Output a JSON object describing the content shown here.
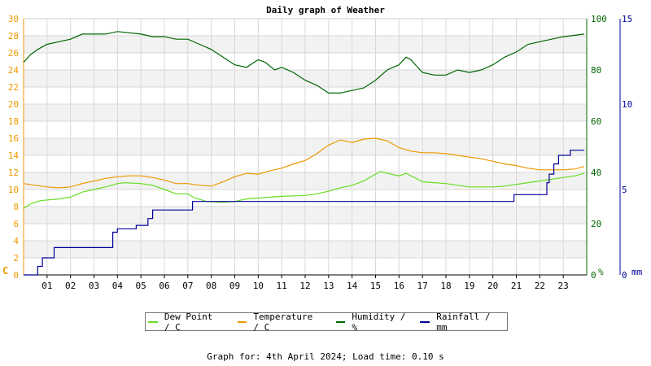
{
  "chart_data": {
    "type": "line",
    "title": "Daily graph of Weather",
    "footer": "Graph for: 4th April 2024; Load time: 0.10 s",
    "x_ticks": [
      "01",
      "02",
      "03",
      "04",
      "05",
      "06",
      "07",
      "08",
      "09",
      "10",
      "11",
      "12",
      "13",
      "14",
      "15",
      "16",
      "17",
      "18",
      "19",
      "20",
      "21",
      "22",
      "23"
    ],
    "xlim": [
      0,
      24
    ],
    "grid": true,
    "legend_placement": "bottom",
    "colors": {
      "dew_point": "#66dd22",
      "temperature": "#ee9900",
      "humidity": "#006600",
      "rainfall": "#000099",
      "left_axis": "#ee9900",
      "grid_band": "#f2f2f2",
      "grid_line": "#d8d8d8"
    },
    "axes": {
      "left": {
        "unit": "C",
        "ylim": [
          0,
          30
        ],
        "ticks": [
          "0",
          "2",
          "4",
          "6",
          "8",
          "10",
          "12",
          "14",
          "16",
          "18",
          "20",
          "22",
          "24",
          "26",
          "28",
          "30"
        ]
      },
      "humidity": {
        "unit": "%",
        "ylim": [
          0,
          100
        ],
        "ticks": [
          "0",
          "20",
          "40",
          "60",
          "80",
          "100"
        ]
      },
      "rainfall": {
        "unit": "mm",
        "ylim": [
          0,
          15
        ],
        "ticks": [
          "0",
          "5",
          "10",
          "15"
        ]
      }
    },
    "series": [
      {
        "key": "dew_point",
        "name": "Dew Point / C",
        "axis": "left",
        "points": [
          [
            0,
            7.8
          ],
          [
            0.3,
            8.3
          ],
          [
            0.7,
            8.7
          ],
          [
            1.5,
            8.9
          ],
          [
            2,
            9.1
          ],
          [
            2.5,
            9.7
          ],
          [
            3,
            10.0
          ],
          [
            3.5,
            10.3
          ],
          [
            4,
            10.7
          ],
          [
            4.3,
            10.8
          ],
          [
            5,
            10.7
          ],
          [
            5.5,
            10.5
          ],
          [
            6,
            10.0
          ],
          [
            6.5,
            9.5
          ],
          [
            7,
            9.5
          ],
          [
            7.3,
            9.0
          ],
          [
            7.8,
            8.6
          ],
          [
            8.5,
            8.5
          ],
          [
            9,
            8.6
          ],
          [
            9.5,
            8.9
          ],
          [
            10,
            9.0
          ],
          [
            10.5,
            9.1
          ],
          [
            11,
            9.2
          ],
          [
            12,
            9.3
          ],
          [
            12.5,
            9.5
          ],
          [
            13,
            9.8
          ],
          [
            13.5,
            10.2
          ],
          [
            14,
            10.5
          ],
          [
            14.5,
            11.0
          ],
          [
            15,
            11.8
          ],
          [
            15.2,
            12.1
          ],
          [
            15.5,
            11.9
          ],
          [
            16,
            11.6
          ],
          [
            16.3,
            11.9
          ],
          [
            16.8,
            11.2
          ],
          [
            17,
            10.9
          ],
          [
            17.5,
            10.8
          ],
          [
            18,
            10.7
          ],
          [
            18.5,
            10.5
          ],
          [
            19,
            10.3
          ],
          [
            19.5,
            10.3
          ],
          [
            20,
            10.3
          ],
          [
            20.5,
            10.4
          ],
          [
            21,
            10.6
          ],
          [
            21.5,
            10.8
          ],
          [
            22,
            11.0
          ],
          [
            22.5,
            11.2
          ],
          [
            23,
            11.4
          ],
          [
            23.5,
            11.6
          ],
          [
            23.9,
            11.9
          ]
        ]
      },
      {
        "key": "temperature",
        "name": "Temperature / C",
        "axis": "left",
        "points": [
          [
            0,
            10.7
          ],
          [
            0.5,
            10.5
          ],
          [
            1,
            10.3
          ],
          [
            1.5,
            10.2
          ],
          [
            2,
            10.3
          ],
          [
            2.5,
            10.7
          ],
          [
            3,
            11.0
          ],
          [
            3.5,
            11.3
          ],
          [
            4,
            11.5
          ],
          [
            4.5,
            11.6
          ],
          [
            5,
            11.6
          ],
          [
            5.5,
            11.4
          ],
          [
            6,
            11.1
          ],
          [
            6.5,
            10.7
          ],
          [
            7,
            10.7
          ],
          [
            7.5,
            10.5
          ],
          [
            8,
            10.4
          ],
          [
            8.5,
            10.9
          ],
          [
            9,
            11.5
          ],
          [
            9.5,
            11.9
          ],
          [
            10,
            11.8
          ],
          [
            10.5,
            12.2
          ],
          [
            11,
            12.5
          ],
          [
            11.5,
            13.0
          ],
          [
            12,
            13.4
          ],
          [
            12.5,
            14.2
          ],
          [
            13,
            15.2
          ],
          [
            13.5,
            15.8
          ],
          [
            14,
            15.5
          ],
          [
            14.5,
            15.9
          ],
          [
            15,
            16.0
          ],
          [
            15.5,
            15.7
          ],
          [
            16,
            14.9
          ],
          [
            16.5,
            14.5
          ],
          [
            17,
            14.3
          ],
          [
            17.5,
            14.3
          ],
          [
            18,
            14.2
          ],
          [
            18.5,
            14.0
          ],
          [
            19,
            13.8
          ],
          [
            19.5,
            13.6
          ],
          [
            20,
            13.3
          ],
          [
            20.5,
            13.0
          ],
          [
            21,
            12.8
          ],
          [
            21.5,
            12.5
          ],
          [
            22,
            12.3
          ],
          [
            22.5,
            12.3
          ],
          [
            23,
            12.3
          ],
          [
            23.5,
            12.4
          ],
          [
            23.9,
            12.7
          ]
        ]
      },
      {
        "key": "humidity",
        "name": "Humidity / %",
        "axis": "humidity",
        "points": [
          [
            0,
            83
          ],
          [
            0.3,
            86
          ],
          [
            0.6,
            88
          ],
          [
            1,
            90
          ],
          [
            1.5,
            91
          ],
          [
            2,
            92
          ],
          [
            2.5,
            94
          ],
          [
            3,
            94
          ],
          [
            3.5,
            94
          ],
          [
            4,
            95
          ],
          [
            5,
            94
          ],
          [
            5.5,
            93
          ],
          [
            6,
            93
          ],
          [
            6.5,
            92
          ],
          [
            7,
            92
          ],
          [
            7.5,
            90
          ],
          [
            8,
            88
          ],
          [
            8.5,
            85
          ],
          [
            9,
            82
          ],
          [
            9.5,
            81
          ],
          [
            10,
            84
          ],
          [
            10.3,
            83
          ],
          [
            10.7,
            80
          ],
          [
            11,
            81
          ],
          [
            11.5,
            79
          ],
          [
            12,
            76
          ],
          [
            12.5,
            74
          ],
          [
            13,
            71
          ],
          [
            13.5,
            71
          ],
          [
            14,
            72
          ],
          [
            14.5,
            73
          ],
          [
            15,
            76
          ],
          [
            15.5,
            80
          ],
          [
            16,
            82
          ],
          [
            16.3,
            85
          ],
          [
            16.5,
            84
          ],
          [
            17,
            79
          ],
          [
            17.5,
            78
          ],
          [
            18,
            78
          ],
          [
            18.5,
            80
          ],
          [
            19,
            79
          ],
          [
            19.5,
            80
          ],
          [
            20,
            82
          ],
          [
            20.5,
            85
          ],
          [
            21,
            87
          ],
          [
            21.5,
            90
          ],
          [
            22,
            91
          ],
          [
            22.5,
            92
          ],
          [
            23,
            93
          ],
          [
            23.9,
            94
          ]
        ]
      },
      {
        "key": "rainfall",
        "name": "Rainfall / mm",
        "axis": "rainfall",
        "step": true,
        "points": [
          [
            0,
            0
          ],
          [
            0.6,
            0
          ],
          [
            0.6,
            0.5
          ],
          [
            0.8,
            0.5
          ],
          [
            0.8,
            1.0
          ],
          [
            1.3,
            1.0
          ],
          [
            1.3,
            1.6
          ],
          [
            3.8,
            1.6
          ],
          [
            3.8,
            2.5
          ],
          [
            4.0,
            2.5
          ],
          [
            4.0,
            2.7
          ],
          [
            4.8,
            2.7
          ],
          [
            4.8,
            2.9
          ],
          [
            5.3,
            2.9
          ],
          [
            5.3,
            3.3
          ],
          [
            5.5,
            3.3
          ],
          [
            5.5,
            3.8
          ],
          [
            7.2,
            3.8
          ],
          [
            7.2,
            4.3
          ],
          [
            20.9,
            4.3
          ],
          [
            20.9,
            4.7
          ],
          [
            22.3,
            4.7
          ],
          [
            22.3,
            5.4
          ],
          [
            22.4,
            5.4
          ],
          [
            22.4,
            5.9
          ],
          [
            22.6,
            5.9
          ],
          [
            22.6,
            6.5
          ],
          [
            22.8,
            6.5
          ],
          [
            22.8,
            7.0
          ],
          [
            23.3,
            7.0
          ],
          [
            23.3,
            7.3
          ],
          [
            23.9,
            7.3
          ]
        ]
      }
    ]
  }
}
